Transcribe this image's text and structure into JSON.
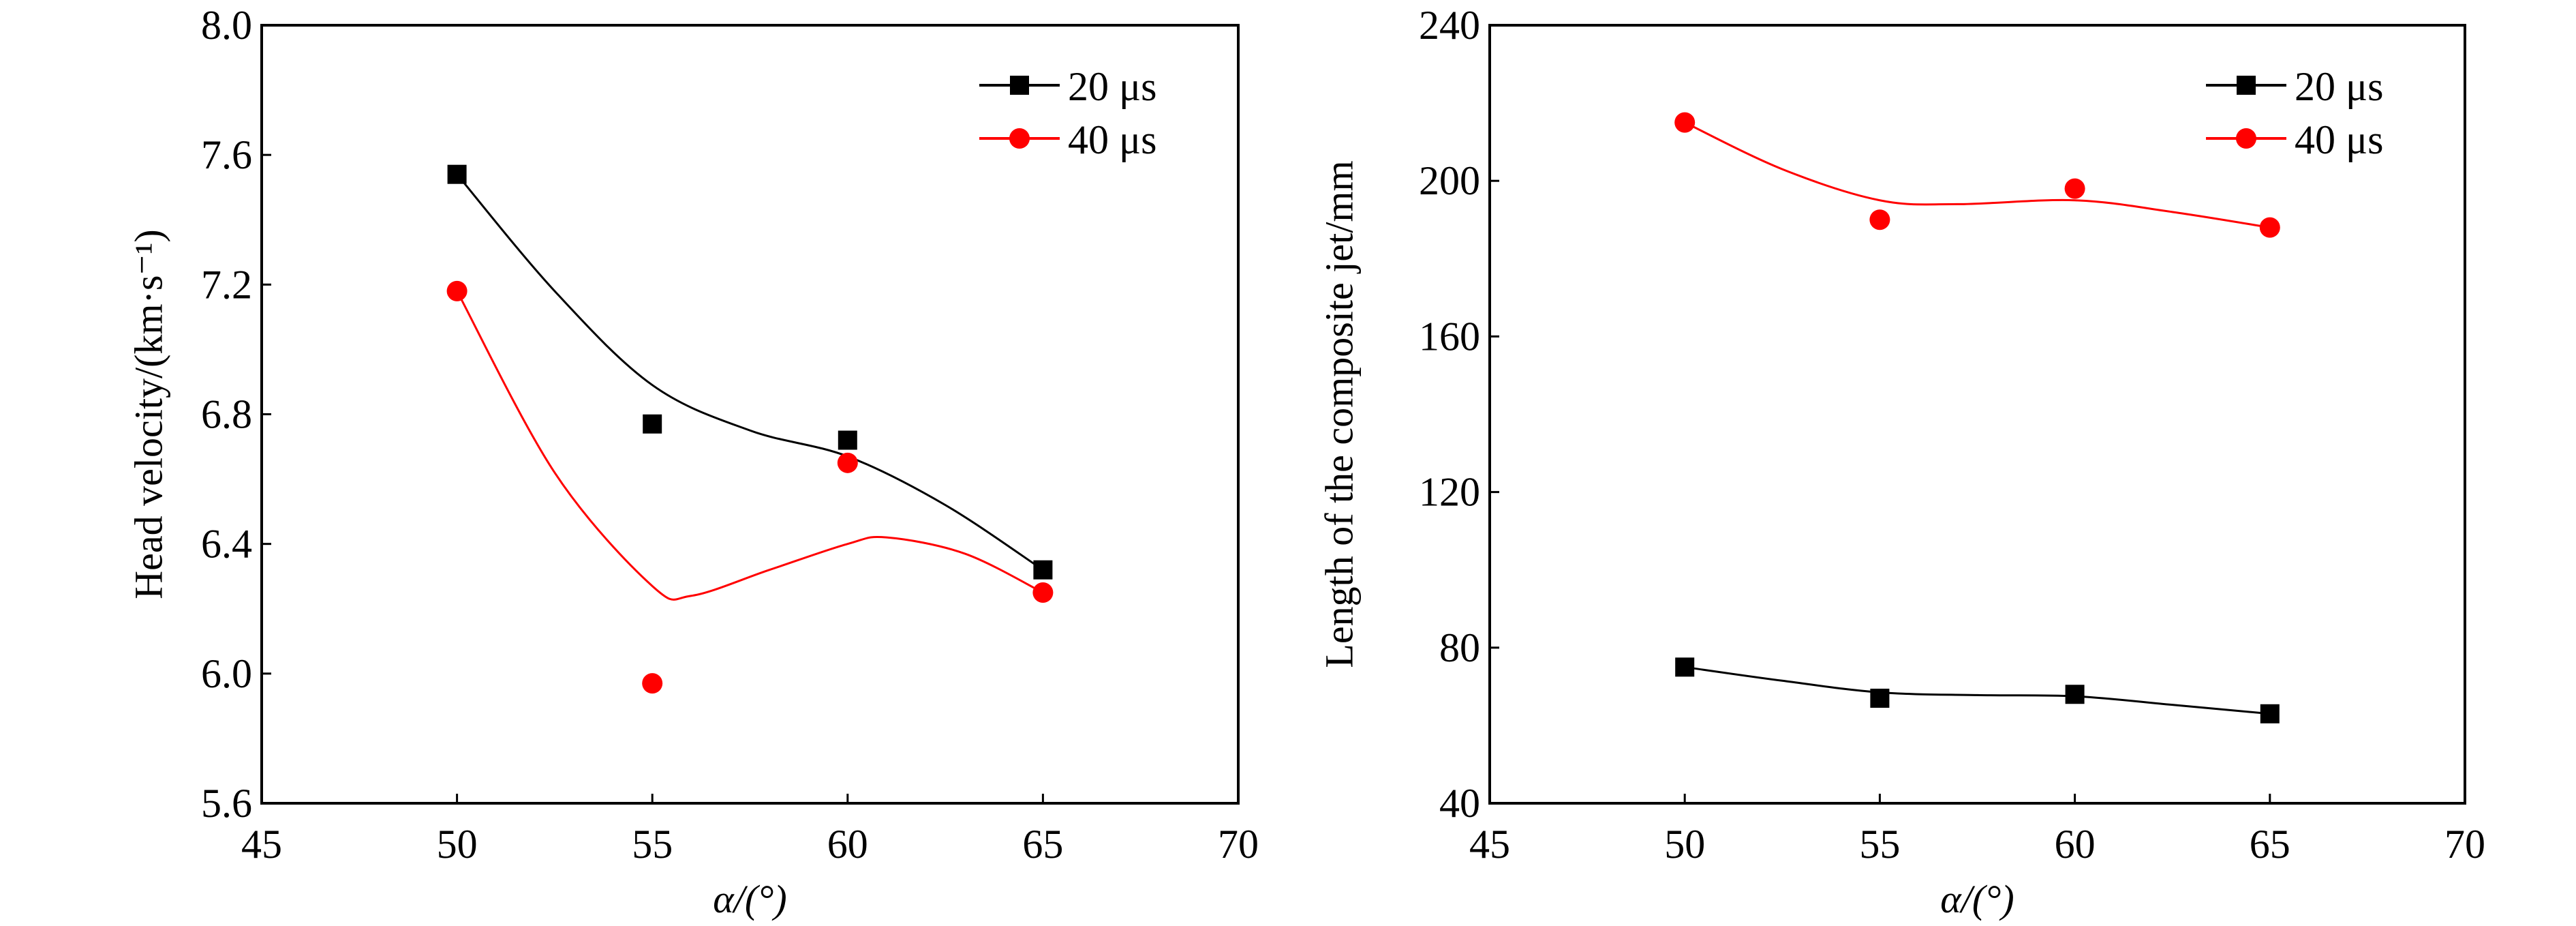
{
  "chart_data": [
    {
      "type": "line",
      "xlabel": "α/(°)",
      "ylabel": "Head velocity/(km·s⁻¹)",
      "xlim": [
        45,
        70
      ],
      "ylim": [
        5.6,
        8.0
      ],
      "xticks": [
        "45",
        "50",
        "55",
        "60",
        "65",
        "70"
      ],
      "yticks": [
        "5.6",
        "6.0",
        "6.4",
        "6.8",
        "7.2",
        "7.6",
        "8.0"
      ],
      "grid": false,
      "legend_position": "top-right",
      "x": [
        50,
        55,
        60,
        65
      ],
      "series": [
        {
          "name": "20 μs",
          "color": "#000000",
          "marker": "square",
          "values": [
            7.54,
            6.77,
            6.72,
            6.32
          ],
          "fit_curve": {
            "x": [
              50,
              52.5,
              55,
              57.5,
              60,
              62.5,
              65
            ],
            "y": [
              7.54,
              7.18,
              6.89,
              6.75,
              6.67,
              6.52,
              6.32
            ]
          }
        },
        {
          "name": "40 μs",
          "color": "#ff0000",
          "marker": "circle",
          "values": [
            7.18,
            5.97,
            6.65,
            6.25
          ],
          "fit_curve": {
            "x": [
              50,
              52.5,
              55,
              56,
              58,
              60,
              61,
              63,
              65
            ],
            "y": [
              7.18,
              6.62,
              6.27,
              6.24,
              6.32,
              6.4,
              6.42,
              6.37,
              6.25
            ]
          }
        }
      ]
    },
    {
      "type": "line",
      "xlabel": "α/(°)",
      "ylabel": "Length of the composite jet/mm",
      "xlim": [
        45,
        70
      ],
      "ylim": [
        40,
        240
      ],
      "xticks": [
        "45",
        "50",
        "55",
        "60",
        "65",
        "70"
      ],
      "yticks": [
        "40",
        "80",
        "120",
        "160",
        "200",
        "240"
      ],
      "grid": false,
      "legend_position": "top-right",
      "x": [
        50,
        55,
        60,
        65
      ],
      "series": [
        {
          "name": "20 μs",
          "color": "#000000",
          "marker": "square",
          "values": [
            75,
            67,
            68,
            63
          ],
          "fit_curve": {
            "x": [
              50,
              52.5,
              55,
              57.5,
              60,
              62.5,
              65
            ],
            "y": [
              75,
              71.5,
              68.5,
              67.8,
              67.5,
              65.3,
              63
            ]
          }
        },
        {
          "name": "40 μs",
          "color": "#ff0000",
          "marker": "circle",
          "values": [
            215,
            190,
            198,
            188
          ],
          "fit_curve": {
            "x": [
              50,
              52.5,
              55,
              57,
              60,
              62.5,
              65
            ],
            "y": [
              215,
              203,
              195,
              194,
              195,
              192,
              188
            ]
          }
        }
      ]
    }
  ]
}
